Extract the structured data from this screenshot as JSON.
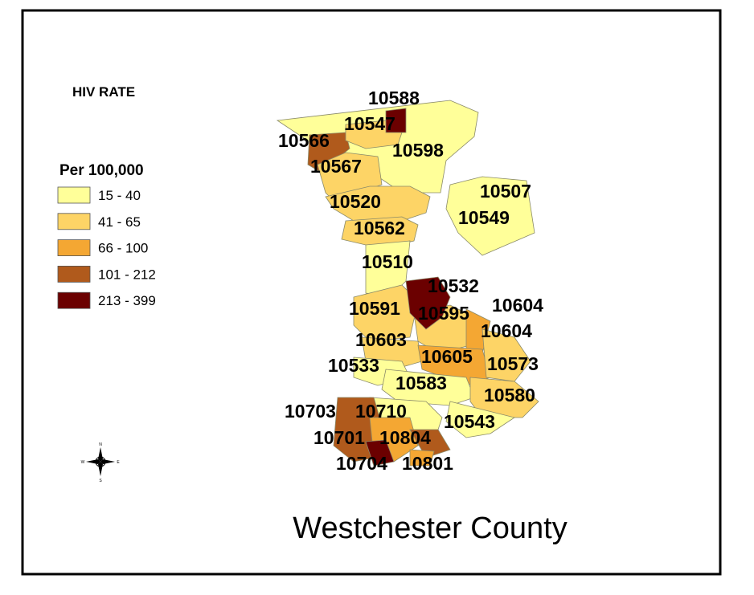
{
  "legend": {
    "title": "HIV RATE",
    "subtitle": "Per 100,000",
    "items": [
      {
        "label": "15 - 40",
        "color": "#ffff99"
      },
      {
        "label": "41 - 65",
        "color": "#fdd466"
      },
      {
        "label": "66 - 100",
        "color": "#f4a733"
      },
      {
        "label": "101 - 212",
        "color": "#b05a1c"
      },
      {
        "label": "213 - 399",
        "color": "#6b0000"
      }
    ]
  },
  "compass": [
    "N",
    "S",
    "E",
    "W"
  ],
  "zip_labels": [
    "10588",
    "10547",
    "10566",
    "10598",
    "10567",
    "10507",
    "10520",
    "10549",
    "10562",
    "10510",
    "10532",
    "10604",
    "10591",
    "10595",
    "10604",
    "10603",
    "10533",
    "10605",
    "10573",
    "10583",
    "10580",
    "10703",
    "10710",
    "10543",
    "10701",
    "10804",
    "10704",
    "10801"
  ],
  "map_title": "Westchester County"
}
